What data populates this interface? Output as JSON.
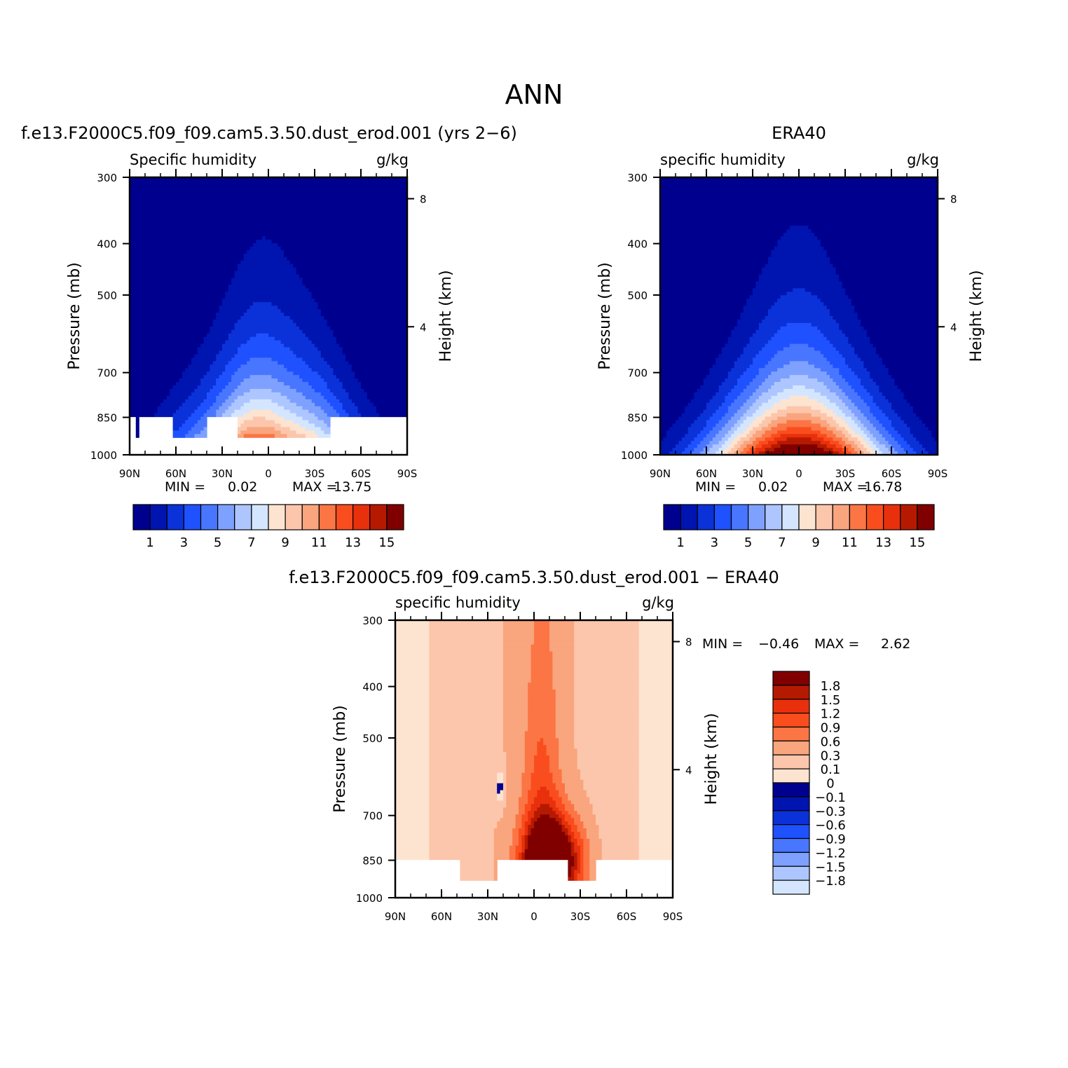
{
  "figure": {
    "title": "ANN",
    "diff_title": "f.e13.F2000C5.f09_f09.cam5.3.50.dust_erod.001 − ERA40"
  },
  "common": {
    "x_ticks": [
      "90N",
      "60N",
      "30N",
      "0",
      "30S",
      "60S",
      "90S"
    ],
    "x_values": [
      90,
      60,
      30,
      0,
      -30,
      -60,
      -90
    ],
    "y_ticks": [
      300,
      400,
      500,
      700,
      850,
      1000
    ],
    "height_ticks": [
      {
        "label": "8",
        "km": 8
      },
      {
        "label": "4",
        "km": 4
      }
    ],
    "ylabel": "Pressure  (mb)",
    "ylabel_right": "Height  (km)",
    "min_label": "MIN  =",
    "max_label": "MAX  ="
  },
  "colors": {
    "blues": [
      "#00008f",
      "#0014b0",
      "#0a32d8",
      "#1f51ff",
      "#4876ff",
      "#7ea1ff",
      "#aec6ff",
      "#d4e6ff"
    ],
    "reds": [
      "#fde4d0",
      "#fcc6ac",
      "#f9a57e",
      "#fc7545",
      "#fa4d1e",
      "#e8300c",
      "#b51a00",
      "#800000"
    ]
  },
  "chart_data": [
    {
      "type": "contour",
      "panel_title": "f.e13.F2000C5.f09_f09.cam5.3.50.dust_erod.001 (yrs 2−6)",
      "left_label": "Specific  humidity",
      "right_label": "g/kg",
      "x_range": [
        90,
        -90
      ],
      "y_range": [
        300,
        1000
      ],
      "y_scale": "log",
      "min_value": "0.02",
      "max_value": "13.75",
      "colorbar_levels": [
        1,
        2,
        3,
        4,
        5,
        6,
        7,
        8,
        9,
        10,
        11,
        12,
        13,
        14,
        15
      ],
      "colorbar_labels": [
        "1",
        "3",
        "5",
        "7",
        "9",
        "11",
        "13",
        "15"
      ],
      "colorbar_position": "bottom",
      "peak_value": 13.75,
      "center_latitude": 0
    },
    {
      "type": "contour",
      "panel_title": "ERA40",
      "left_label": "specific  humidity",
      "right_label": "g/kg",
      "x_range": [
        90,
        -90
      ],
      "y_range": [
        300,
        1000
      ],
      "y_scale": "log",
      "min_value": "0.02",
      "max_value": "16.78",
      "colorbar_levels": [
        1,
        2,
        3,
        4,
        5,
        6,
        7,
        8,
        9,
        10,
        11,
        12,
        13,
        14,
        15
      ],
      "colorbar_labels": [
        "1",
        "3",
        "5",
        "7",
        "9",
        "11",
        "13",
        "15"
      ],
      "colorbar_position": "bottom",
      "peak_value": 16.78,
      "center_latitude": 0
    },
    {
      "type": "contour",
      "panel_title": "",
      "left_label": "specific  humidity",
      "right_label": "g/kg",
      "x_range": [
        90,
        -90
      ],
      "y_range": [
        300,
        1000
      ],
      "y_scale": "log",
      "min_value": "−0.46",
      "max_value": "2.62",
      "colorbar_levels": [
        -1.8,
        -1.5,
        -1.2,
        -0.9,
        -0.6,
        -0.3,
        -0.1,
        0,
        0.1,
        0.3,
        0.6,
        0.9,
        1.2,
        1.5,
        1.8
      ],
      "colorbar_labels": [
        "1.8",
        "1.5",
        "1.2",
        "0.9",
        "0.6",
        "0.3",
        "0.1",
        "0",
        "−0.1",
        "−0.3",
        "−0.6",
        "−0.9",
        "−1.2",
        "−1.5",
        "−1.8"
      ],
      "colorbar_position": "right",
      "peak_value": 2.62,
      "center_latitude": -15
    }
  ]
}
